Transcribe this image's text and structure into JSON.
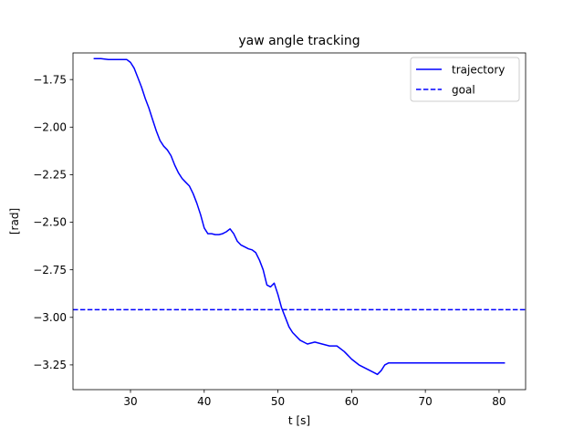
{
  "chart_data": {
    "type": "line",
    "title": "yaw angle tracking",
    "xlabel": "t [s]",
    "ylabel": "[rad]",
    "xlim": [
      22.2,
      83.6
    ],
    "ylim": [
      -3.38,
      -1.61
    ],
    "xticks": [
      30,
      40,
      50,
      60,
      70,
      80
    ],
    "yticks": [
      -1.75,
      -2.0,
      -2.25,
      -2.5,
      -2.75,
      -3.0,
      -3.25
    ],
    "xtick_labels": [
      "30",
      "40",
      "50",
      "60",
      "70",
      "80"
    ],
    "ytick_labels": [
      "−1.75",
      "−2.00",
      "−2.25",
      "−2.50",
      "−2.75",
      "−3.00",
      "−3.25"
    ],
    "grid": false,
    "legend_placement": "top-right",
    "colors": {
      "trajectory": "#0000ff",
      "goal": "#0000ff"
    },
    "series": [
      {
        "name": "trajectory",
        "style": "solid",
        "x": [
          25,
          26,
          27,
          28,
          29,
          29.5,
          30,
          30.5,
          31,
          31.5,
          32,
          32.5,
          33,
          33.5,
          34,
          34.5,
          35,
          35.5,
          36,
          36.5,
          37,
          37.5,
          38,
          38.5,
          39,
          39.5,
          40,
          40.5,
          41,
          41.5,
          42,
          42.5,
          43,
          43.5,
          44,
          44.5,
          45,
          45.5,
          46,
          46.5,
          47,
          47.5,
          48,
          48.5,
          49,
          49.5,
          50,
          50.5,
          51,
          51.5,
          52,
          53,
          54,
          55,
          56,
          57,
          58,
          59,
          60,
          61,
          62,
          63,
          63.5,
          64,
          64.5,
          65,
          66,
          68,
          70,
          75,
          80,
          80.8
        ],
        "y": [
          -1.64,
          -1.64,
          -1.645,
          -1.645,
          -1.645,
          -1.645,
          -1.66,
          -1.69,
          -1.74,
          -1.79,
          -1.85,
          -1.9,
          -1.96,
          -2.02,
          -2.07,
          -2.1,
          -2.12,
          -2.15,
          -2.2,
          -2.24,
          -2.27,
          -2.29,
          -2.31,
          -2.35,
          -2.4,
          -2.46,
          -2.53,
          -2.56,
          -2.56,
          -2.565,
          -2.565,
          -2.56,
          -2.55,
          -2.535,
          -2.56,
          -2.6,
          -2.62,
          -2.63,
          -2.64,
          -2.645,
          -2.66,
          -2.7,
          -2.75,
          -2.83,
          -2.84,
          -2.82,
          -2.88,
          -2.95,
          -3.0,
          -3.05,
          -3.08,
          -3.12,
          -3.14,
          -3.13,
          -3.14,
          -3.15,
          -3.15,
          -3.18,
          -3.22,
          -3.25,
          -3.27,
          -3.29,
          -3.3,
          -3.28,
          -3.25,
          -3.24,
          -3.24,
          -3.24,
          -3.24,
          -3.24,
          -3.24,
          -3.24
        ]
      },
      {
        "name": "goal",
        "style": "dashed",
        "x": [
          22.2,
          83.6
        ],
        "y": [
          -2.96,
          -2.96
        ]
      }
    ]
  }
}
